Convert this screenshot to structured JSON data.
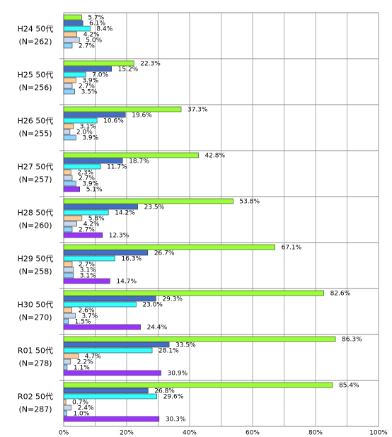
{
  "chart_data": {
    "type": "grouped-hbar",
    "categories": [
      "H24 50代",
      "H25 50代",
      "H26 50代",
      "H27 50代",
      "H28 50代",
      "H29 50代",
      "H30 50代",
      "R01 50代",
      "R02 50代"
    ],
    "n_labels": [
      "(N=262)",
      "(N=256)",
      "(N=255)",
      "(N=257)",
      "(N=260)",
      "(N=258)",
      "(N=270)",
      "(N=278)",
      "(N=287)"
    ],
    "series": [
      {
        "color": "#99ff33",
        "values": [
          5.7,
          22.3,
          37.3,
          42.8,
          53.8,
          67.1,
          82.6,
          86.3,
          85.4
        ],
        "value_labels": [
          "5.7%",
          "22.3%",
          "37.3%",
          "42.8%",
          "53.8%",
          "67.1%",
          "82.6%",
          "86.3%",
          "85.4%"
        ]
      },
      {
        "color": "#3f6fc6",
        "values": [
          6.1,
          15.2,
          19.6,
          18.7,
          23.5,
          26.7,
          29.3,
          33.5,
          26.8
        ],
        "value_labels": [
          "6.1%",
          "15.2%",
          "19.6%",
          "18.7%",
          "23.5%",
          "26.7%",
          "29.3%",
          "33.5%",
          "26.8%"
        ]
      },
      {
        "color": "#33ffff",
        "values": [
          8.4,
          7.0,
          10.6,
          11.7,
          14.2,
          16.3,
          23.0,
          28.1,
          29.6
        ],
        "value_labels": [
          "8.4%",
          "7.0%",
          "10.6%",
          "11.7%",
          "14.2%",
          "16.3%",
          "23.0%",
          "28.1%",
          "29.6%"
        ]
      },
      {
        "color": "#ffcc99",
        "values": [
          4.2,
          3.9,
          3.1,
          2.3,
          5.8,
          2.7,
          2.6,
          4.7,
          0.7
        ],
        "value_labels": [
          "4.2%",
          "3.9%",
          "3.1%",
          "2.3%",
          "5.8%",
          "2.7%",
          "2.6%",
          "4.7%",
          "0.7%"
        ]
      },
      {
        "color": "#c6d9f1",
        "values": [
          5.0,
          2.7,
          2.0,
          2.7,
          4.2,
          3.1,
          3.7,
          2.2,
          2.4
        ],
        "value_labels": [
          "5.0%",
          "2.7%",
          "2.0%",
          "2.7%",
          "4.2%",
          "3.1%",
          "3.7%",
          "2.2%",
          "2.4%"
        ]
      },
      {
        "color": "#8fd3ff",
        "values": [
          2.7,
          3.5,
          3.9,
          3.9,
          2.7,
          3.1,
          1.5,
          1.1,
          1.0
        ],
        "value_labels": [
          "2.7%",
          "3.5%",
          "3.9%",
          "3.9%",
          "2.7%",
          "3.1%",
          "1.5%",
          "1.1%",
          "1.0%"
        ]
      },
      {
        "color": "#9933ff",
        "values": [
          null,
          null,
          null,
          5.1,
          12.3,
          14.7,
          24.4,
          30.9,
          30.3
        ],
        "value_labels": [
          null,
          null,
          null,
          "5.1%",
          "12.3%",
          "14.7%",
          "24.4%",
          "30.9%",
          "30.3%"
        ]
      }
    ],
    "xlim": [
      0,
      100
    ],
    "xticks": [
      {
        "value": 0,
        "label": "0%"
      },
      {
        "value": 20,
        "label": "20%"
      },
      {
        "value": 40,
        "label": "40%"
      },
      {
        "value": 60,
        "label": "60%"
      },
      {
        "value": 80,
        "label": "80%"
      },
      {
        "value": 100,
        "label": "100%"
      }
    ],
    "minor_xticks": [
      10,
      30,
      50,
      70,
      90
    ],
    "grid": true
  }
}
